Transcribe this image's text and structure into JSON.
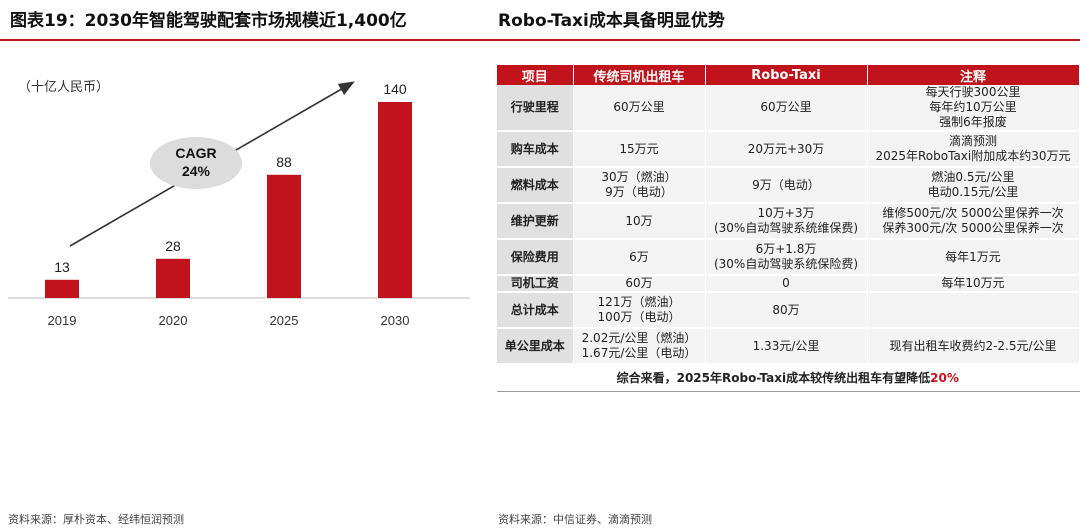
{
  "left_title": "图表19：2030年智能驾驶配套市场规模近1,400亿",
  "right_title": "Robo-Taxi成本具备明显优势",
  "unit_label": "（十亿人民币）",
  "left_source": "资料来源：厚朴资本、经纬恒润预测",
  "right_source": "资料来源：中信证券、滴滴预测",
  "cagr": {
    "label": "CAGR",
    "value": "24%"
  },
  "colors": {
    "accent": "#c0131b",
    "bar": "#c0131b",
    "bubble": "#dcdcdc",
    "highlight": "#d0101a"
  },
  "chart_data": {
    "type": "bar",
    "categories": [
      "2019",
      "2020",
      "2025",
      "2030"
    ],
    "values": [
      13,
      28,
      88,
      140
    ],
    "data_labels": [
      "13",
      "28",
      "88",
      "140"
    ],
    "ylabel": "（十亿人民币）",
    "ylim": [
      0,
      140
    ],
    "grid": false,
    "legend": "none"
  },
  "table": {
    "headers": [
      "项目",
      "传统司机出租车",
      "Robo-Taxi",
      "注释"
    ],
    "rows": [
      {
        "item": "行驶里程",
        "trad": [
          "60万公里"
        ],
        "robo": [
          "60万公里"
        ],
        "note": [
          "每天行驶300公里",
          "每年约10万公里",
          "强制6年报废"
        ]
      },
      {
        "item": "购车成本",
        "trad": [
          "15万元"
        ],
        "robo": [
          "20万元+30万"
        ],
        "note": [
          "滴滴预测",
          "2025年RoboTaxi附加成本约30万元"
        ]
      },
      {
        "item": "燃料成本",
        "trad": [
          "30万（燃油）",
          "9万（电动）"
        ],
        "robo": [
          "9万（电动）"
        ],
        "note": [
          "燃油0.5元/公里",
          "电动0.15元/公里"
        ]
      },
      {
        "item": "维护更新",
        "trad": [
          "10万"
        ],
        "robo": [
          "10万+3万",
          "(30%自动驾驶系统维保费)"
        ],
        "note": [
          "维修500元/次 5000公里保养一次",
          "保养300元/次 5000公里保养一次"
        ]
      },
      {
        "item": "保险费用",
        "trad": [
          "6万"
        ],
        "robo": [
          "6万+1.8万",
          "(30%自动驾驶系统保险费)"
        ],
        "note": [
          "每年1万元"
        ]
      },
      {
        "item": "司机工资",
        "trad": [
          "60万"
        ],
        "robo": [
          "0"
        ],
        "note": [
          "每年10万元"
        ]
      },
      {
        "item": "总计成本",
        "trad": [
          "121万（燃油）",
          "100万（电动）"
        ],
        "robo": [
          "80万"
        ],
        "note": [
          ""
        ]
      },
      {
        "item": "单公里成本",
        "trad": [
          "2.02元/公里（燃油）",
          "1.67元/公里（电动）"
        ],
        "robo": [
          "1.33元/公里"
        ],
        "note": [
          "现有出租车收费约2-2.5元/公里"
        ]
      }
    ],
    "summary_text": "综合来看，2025年Robo-Taxi成本较传统出租车有望降低",
    "summary_pct": "20%"
  }
}
